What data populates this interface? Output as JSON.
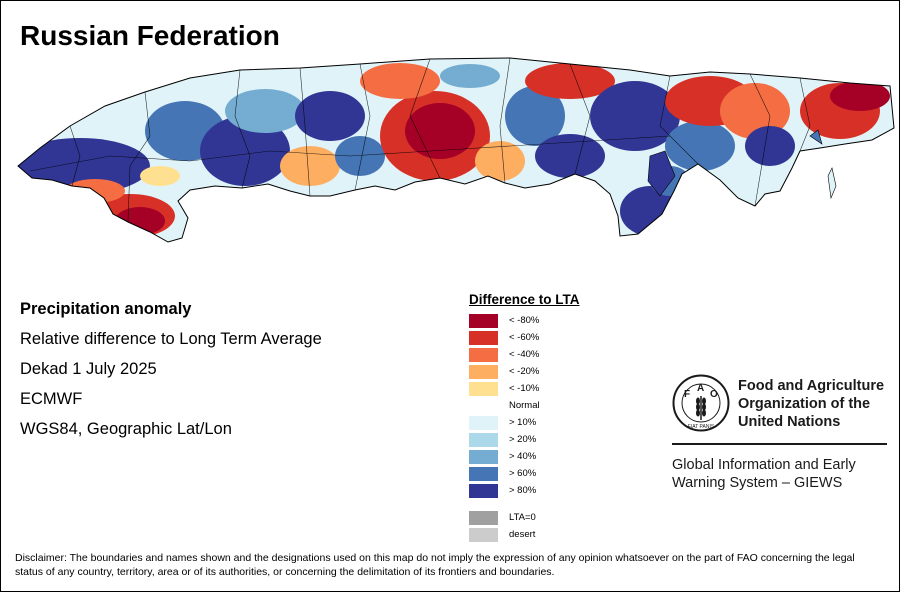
{
  "map": {
    "title": "Russian Federation"
  },
  "info": {
    "heading": "Precipitation anomaly",
    "line1": "Relative difference to Long Term Average",
    "line2": "Dekad 1 July 2025",
    "line3": "ECMWF",
    "line4": "WGS84, Geographic Lat/Lon"
  },
  "legend": {
    "title": "Difference to LTA",
    "normal_label": "Normal",
    "items": [
      {
        "label": "< -80%",
        "color": "#a50026"
      },
      {
        "label": "< -60%",
        "color": "#d73027"
      },
      {
        "label": "< -40%",
        "color": "#f46d43"
      },
      {
        "label": "< -20%",
        "color": "#fdae61"
      },
      {
        "label": "< -10%",
        "color": "#fee090"
      },
      {
        "label": "> 10%",
        "color": "#e0f3f8"
      },
      {
        "label": "> 20%",
        "color": "#abd9e9"
      },
      {
        "label": "> 40%",
        "color": "#74add1"
      },
      {
        "label": "> 60%",
        "color": "#4575b4"
      },
      {
        "label": "> 80%",
        "color": "#313695"
      },
      {
        "label": "LTA=0",
        "color": "#a0a0a0"
      },
      {
        "label": "desert",
        "color": "#cccccc"
      }
    ]
  },
  "organization": {
    "name_line1": "Food and Agriculture",
    "name_line2": "Organization of the",
    "name_line3": "United Nations",
    "system_line1": "Global Information and Early",
    "system_line2": "Warning System – GIEWS",
    "logo_letters": [
      "F",
      "A",
      "O"
    ],
    "logo_motto": "FIAT PANIS"
  },
  "disclaimer": "Disclaimer: The boundaries and names shown and the designations used on this map do not imply the expression of any opinion whatsoever on the part of FAO concerning the legal status of any country, territory, area or of its authorities, or concerning the delimitation of its frontiers and boundaries."
}
